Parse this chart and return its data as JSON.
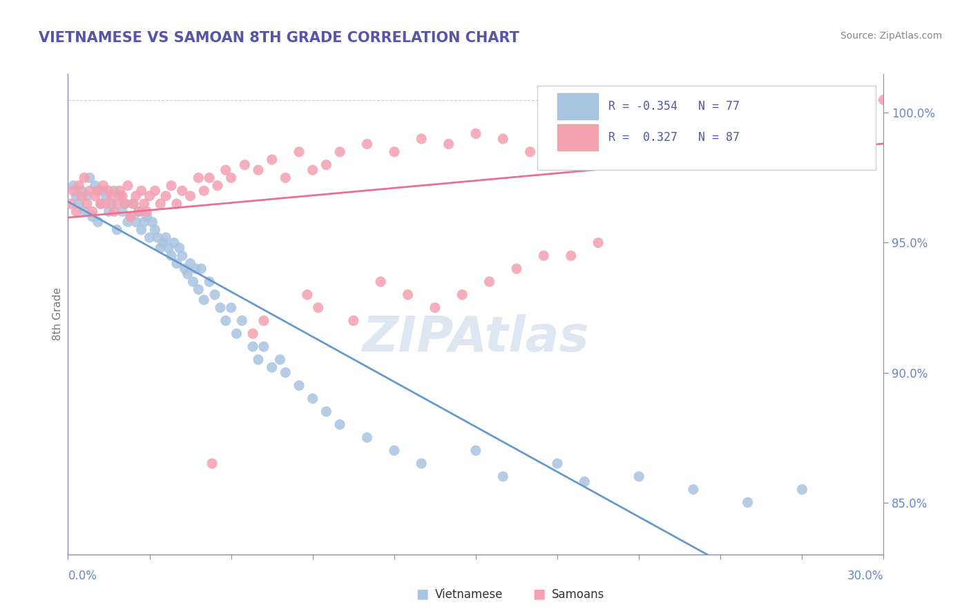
{
  "title": "VIETNAMESE VS SAMOAN 8TH GRADE CORRELATION CHART",
  "source_text": "Source: ZipAtlas.com",
  "ylabel": "8th Grade",
  "xmin": 0.0,
  "xmax": 30.0,
  "ymin": 83.0,
  "ymax": 101.5,
  "yticks": [
    85.0,
    90.0,
    95.0,
    100.0
  ],
  "ytick_labels": [
    "85.0%",
    "90.0%",
    "95.0%",
    "100.0%"
  ],
  "R_vietnamese": -0.354,
  "N_vietnamese": 77,
  "R_samoan": 0.327,
  "N_samoan": 87,
  "color_vietnamese": "#a8c4e0",
  "color_samoan": "#f4a0b0",
  "color_line_vietnamese": "#6699cc",
  "color_line_samoan": "#e87090",
  "watermark": "ZIPAtlas",
  "watermark_color": "#c8d8e8",
  "background_color": "#ffffff",
  "title_color": "#5555aa",
  "axis_color": "#8888bb",
  "tick_color": "#6688cc",
  "vietnamese_x": [
    0.2,
    0.3,
    0.4,
    0.5,
    0.6,
    0.7,
    0.8,
    0.9,
    1.0,
    1.1,
    1.2,
    1.3,
    1.4,
    1.5,
    1.6,
    1.7,
    1.8,
    1.9,
    2.0,
    2.1,
    2.2,
    2.3,
    2.4,
    2.5,
    2.6,
    2.7,
    2.8,
    2.9,
    3.0,
    3.1,
    3.2,
    3.3,
    3.4,
    3.5,
    3.6,
    3.7,
    3.8,
    3.9,
    4.0,
    4.1,
    4.2,
    4.3,
    4.4,
    4.5,
    4.6,
    4.7,
    4.8,
    4.9,
    5.0,
    5.2,
    5.4,
    5.6,
    5.8,
    6.0,
    6.2,
    6.4,
    6.8,
    7.0,
    7.2,
    7.5,
    7.8,
    8.0,
    8.5,
    9.0,
    9.5,
    10.0,
    11.0,
    12.0,
    13.0,
    15.0,
    16.0,
    18.0,
    19.0,
    21.0,
    23.0,
    25.0,
    27.0
  ],
  "vietnamese_y": [
    97.2,
    96.8,
    96.5,
    97.0,
    96.2,
    96.8,
    97.5,
    96.0,
    97.2,
    95.8,
    96.5,
    97.0,
    96.8,
    96.2,
    96.5,
    97.0,
    95.5,
    96.8,
    96.2,
    96.5,
    95.8,
    96.0,
    96.5,
    95.8,
    96.2,
    95.5,
    95.8,
    96.0,
    95.2,
    95.8,
    95.5,
    95.2,
    94.8,
    95.0,
    95.2,
    94.8,
    94.5,
    95.0,
    94.2,
    94.8,
    94.5,
    94.0,
    93.8,
    94.2,
    93.5,
    94.0,
    93.2,
    94.0,
    92.8,
    93.5,
    93.0,
    92.5,
    92.0,
    92.5,
    91.5,
    92.0,
    91.0,
    90.5,
    91.0,
    90.2,
    90.5,
    90.0,
    89.5,
    89.0,
    88.5,
    88.0,
    87.5,
    87.0,
    86.5,
    87.0,
    86.0,
    86.5,
    85.8,
    86.0,
    85.5,
    85.0,
    85.5
  ],
  "samoan_x": [
    0.1,
    0.2,
    0.3,
    0.4,
    0.5,
    0.6,
    0.7,
    0.8,
    0.9,
    1.0,
    1.1,
    1.2,
    1.3,
    1.4,
    1.5,
    1.6,
    1.7,
    1.8,
    1.9,
    2.0,
    2.1,
    2.2,
    2.3,
    2.4,
    2.5,
    2.6,
    2.7,
    2.8,
    2.9,
    3.0,
    3.2,
    3.4,
    3.6,
    3.8,
    4.0,
    4.2,
    4.5,
    4.8,
    5.0,
    5.2,
    5.5,
    5.8,
    6.0,
    6.5,
    7.0,
    7.5,
    8.0,
    8.5,
    9.0,
    9.5,
    10.0,
    11.0,
    12.0,
    13.0,
    14.0,
    15.0,
    16.0,
    17.0,
    18.0,
    19.0,
    20.0,
    21.0,
    22.0,
    23.0,
    24.0,
    25.0,
    26.0,
    27.0,
    28.0,
    29.0,
    29.5,
    30.0,
    15.5,
    16.5,
    17.5,
    7.2,
    6.8,
    5.3,
    8.8,
    9.2,
    10.5,
    11.5,
    12.5,
    13.5,
    14.5,
    18.5,
    19.5
  ],
  "samoan_y": [
    96.5,
    97.0,
    96.2,
    97.2,
    96.8,
    97.5,
    96.5,
    97.0,
    96.2,
    96.8,
    97.0,
    96.5,
    97.2,
    96.5,
    97.0,
    96.8,
    96.2,
    96.5,
    97.0,
    96.8,
    96.5,
    97.2,
    96.0,
    96.5,
    96.8,
    96.2,
    97.0,
    96.5,
    96.2,
    96.8,
    97.0,
    96.5,
    96.8,
    97.2,
    96.5,
    97.0,
    96.8,
    97.5,
    97.0,
    97.5,
    97.2,
    97.8,
    97.5,
    98.0,
    97.8,
    98.2,
    97.5,
    98.5,
    97.8,
    98.0,
    98.5,
    98.8,
    98.5,
    99.0,
    98.8,
    99.2,
    99.0,
    98.5,
    99.5,
    99.0,
    99.2,
    99.5,
    99.0,
    99.5,
    99.2,
    99.8,
    99.5,
    100.0,
    99.8,
    100.2,
    100.0,
    100.5,
    93.5,
    94.0,
    94.5,
    92.0,
    91.5,
    86.5,
    93.0,
    92.5,
    92.0,
    93.5,
    93.0,
    92.5,
    93.0,
    94.5,
    95.0
  ]
}
